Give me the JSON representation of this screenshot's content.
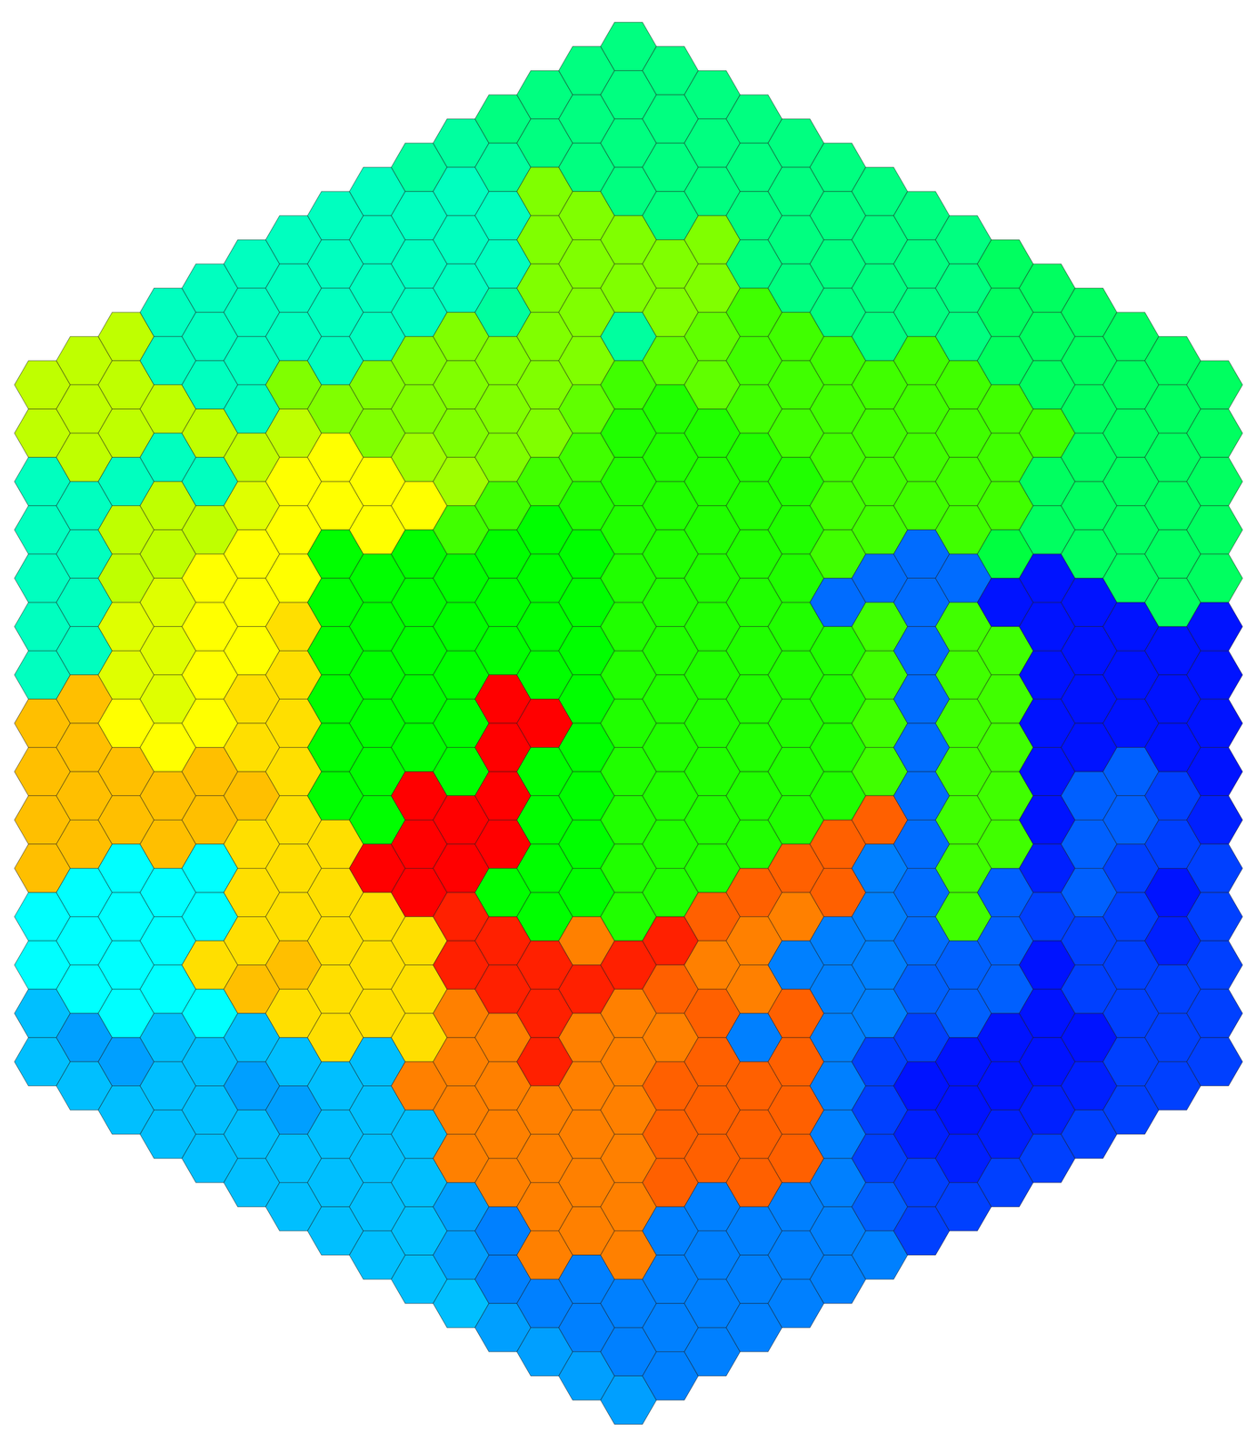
{
  "chart_data": {
    "type": "heatmap",
    "color_range": [
      0,
      16
    ],
    "cells": [
      [
        11,
        11,
        5,
        5,
        5,
        5,
        5,
        13,
        13,
        13,
        13,
        4,
        4,
        3,
        3
      ],
      [
        11,
        11,
        11,
        5,
        5,
        5,
        5,
        13,
        13,
        13,
        13,
        4,
        4,
        4,
        2.5,
        3
      ],
      [
        11,
        11,
        11,
        5,
        11,
        11,
        11.5,
        11.5,
        12,
        13,
        13,
        4,
        4,
        4,
        4,
        2.5,
        3
      ],
      [
        5,
        5,
        11,
        5,
        11,
        11,
        11.5,
        11.5,
        11.5,
        12,
        13,
        13,
        4,
        4,
        4,
        3,
        3,
        3
      ],
      [
        5,
        5,
        5,
        11,
        5,
        11,
        12,
        12,
        12,
        12,
        13,
        13,
        4,
        4,
        12.5,
        4,
        3,
        3,
        3
      ],
      [
        5,
        5,
        5,
        5,
        11,
        11.5,
        12,
        12,
        12,
        12.5,
        12.5,
        13,
        12.5,
        12.5,
        12.5,
        13,
        3,
        2.5,
        3,
        3
      ],
      [
        5,
        5,
        5,
        10,
        11,
        12,
        12,
        12,
        12.5,
        12.5,
        12.5,
        12.5,
        12.5,
        12.5,
        12.5,
        13,
        12.5,
        3,
        2.5,
        3,
        3
      ],
      [
        5,
        5,
        5,
        5,
        10,
        12,
        12,
        8,
        8,
        8,
        8,
        8,
        8,
        12.5,
        12.5,
        12.5,
        12.5,
        12.5,
        3,
        3,
        3,
        3
      ],
      [
        5,
        5,
        5,
        5,
        10,
        10,
        12,
        12,
        8,
        8,
        8,
        8,
        8,
        8,
        16,
        12.5,
        12.5,
        12.5,
        3,
        3,
        3,
        3,
        3
      ],
      [
        5.5,
        5,
        5,
        5,
        10,
        10,
        10.5,
        12,
        8,
        8,
        8,
        8,
        8,
        16,
        16,
        16,
        12.5,
        12.5,
        12.5,
        14,
        3,
        3,
        3,
        3
      ],
      [
        5.5,
        5,
        5,
        5,
        10,
        10,
        10,
        10.5,
        9,
        8,
        8,
        8,
        8,
        8,
        16,
        16,
        15.5,
        15.5,
        14,
        14,
        14,
        14,
        2.5,
        2.5,
        3
      ],
      [
        6,
        5.5,
        5,
        5,
        5.5,
        10,
        10,
        10,
        9,
        8,
        8,
        8,
        16,
        16,
        16,
        16,
        8,
        15.5,
        15.5,
        14,
        14,
        14,
        14,
        2,
        2,
        2.5
      ],
      [
        6,
        6,
        10,
        10,
        10,
        10,
        10,
        10,
        9,
        8,
        8,
        8,
        8,
        16,
        8,
        8,
        8,
        8,
        15.5,
        15.5,
        15.5,
        14,
        14,
        14,
        14,
        2,
        2.5
      ],
      [
        6,
        6,
        6,
        10,
        10,
        10,
        10,
        9.5,
        9,
        8.5,
        8,
        8,
        8,
        8,
        8,
        8,
        8,
        8,
        14,
        15.5,
        14,
        14,
        14,
        14,
        14,
        2,
        2,
        2.5
      ],
      [
        6,
        6,
        6,
        6,
        10,
        10,
        5.5,
        9,
        8.5,
        8.5,
        8.5,
        8.5,
        8.5,
        8.5,
        8.5,
        8.5,
        8.5,
        8.5,
        8.5,
        15.5,
        14,
        14,
        14,
        14,
        14,
        14,
        2,
        2,
        2.5
      ],
      [
        6,
        6,
        6,
        6,
        10,
        10,
        9.5,
        8.5,
        8.5,
        8.5,
        8.5,
        8.5,
        8.5,
        8.5,
        8.5,
        8.5,
        8.5,
        8.5,
        15.5,
        14.5,
        14,
        14.5,
        14.5,
        14.5,
        2,
        2,
        2,
        2
      ],
      [
        6,
        6,
        6,
        10,
        10,
        9.5,
        9.5,
        8.5,
        8.5,
        8.5,
        8.5,
        8.5,
        8.5,
        8.5,
        8.5,
        8.5,
        8.5,
        14.5,
        14,
        14.5,
        14.5,
        14.5,
        14.5,
        2,
        2,
        2,
        2
      ],
      [
        6,
        6,
        6,
        6,
        9,
        9,
        9,
        8.5,
        8.5,
        8.5,
        8.5,
        8.5,
        8.5,
        8.5,
        8.5,
        8.5,
        14.5,
        14,
        14,
        2,
        14.5,
        14.5,
        14.5,
        2,
        2,
        2
      ],
      [
        6,
        6,
        6,
        6,
        9,
        9,
        9,
        8.5,
        8.5,
        8.5,
        8.5,
        8.5,
        8.5,
        8.5,
        8.5,
        14.5,
        14,
        2,
        14.5,
        14.5,
        14.5,
        14.5,
        2,
        2,
        2
      ],
      [
        6,
        6,
        6,
        6,
        9,
        9,
        9,
        9,
        9,
        1.7,
        8.5,
        8.5,
        8.5,
        8.5,
        14.5,
        14.5,
        2,
        2,
        2,
        2,
        2,
        2,
        2,
        2
      ],
      [
        6,
        6,
        6,
        6,
        9,
        9,
        9,
        9,
        1.7,
        9,
        9,
        9,
        9,
        14.5,
        2,
        2,
        2,
        2,
        1,
        1,
        1,
        1.5,
        2
      ],
      [
        6,
        6,
        6,
        9,
        9,
        9,
        9,
        1.7,
        1.7,
        1.7,
        1.7,
        1.7,
        1.7,
        1.7,
        1.7,
        1.7,
        1.5,
        1,
        0.3,
        0.5,
        1,
        1
      ],
      [
        6,
        6,
        6,
        9,
        9,
        9,
        9,
        1.7,
        9,
        9,
        9,
        9,
        9,
        9,
        9,
        1.5,
        1.5,
        0.3,
        0.3,
        0.5,
        1
      ],
      [
        6.5,
        6.5,
        6.5,
        9,
        9,
        9,
        7,
        0.3,
        9,
        9,
        9,
        9,
        9,
        1.5,
        1.5,
        1.5,
        0.3,
        0.3,
        0.5,
        1
      ],
      [
        6.5,
        6.5,
        6.5,
        9,
        6.5,
        6.5,
        0.3,
        0.3,
        0.3,
        0.3,
        0.3,
        0.3,
        0.5,
        1,
        0.3,
        0.3,
        0.3,
        0.5,
        1
      ],
      [
        6.5,
        6.5,
        6.5,
        6.5,
        6.5,
        6.5,
        0.3,
        0.3,
        0.3,
        0.3,
        1.5,
        1.5,
        1.5,
        1,
        1,
        0.3,
        0.5,
        1
      ],
      [
        6.5,
        6.5,
        6.5,
        6.5,
        6.5,
        6.5,
        0.3,
        0.3,
        0.3,
        1.5,
        1.5,
        1,
        1,
        1,
        1,
        1,
        1
      ],
      [
        6.5,
        6.5,
        6.5,
        6.5,
        6.5,
        6.5,
        0.3,
        0.3,
        0.3,
        1,
        1,
        0.3,
        0.5,
        1,
        1,
        1
      ],
      [
        6.5,
        6.5,
        6.5,
        6.5,
        6.5,
        0.3,
        0.3,
        0.3,
        0.3,
        0.5,
        1,
        1,
        1,
        1,
        1
      ]
    ]
  }
}
